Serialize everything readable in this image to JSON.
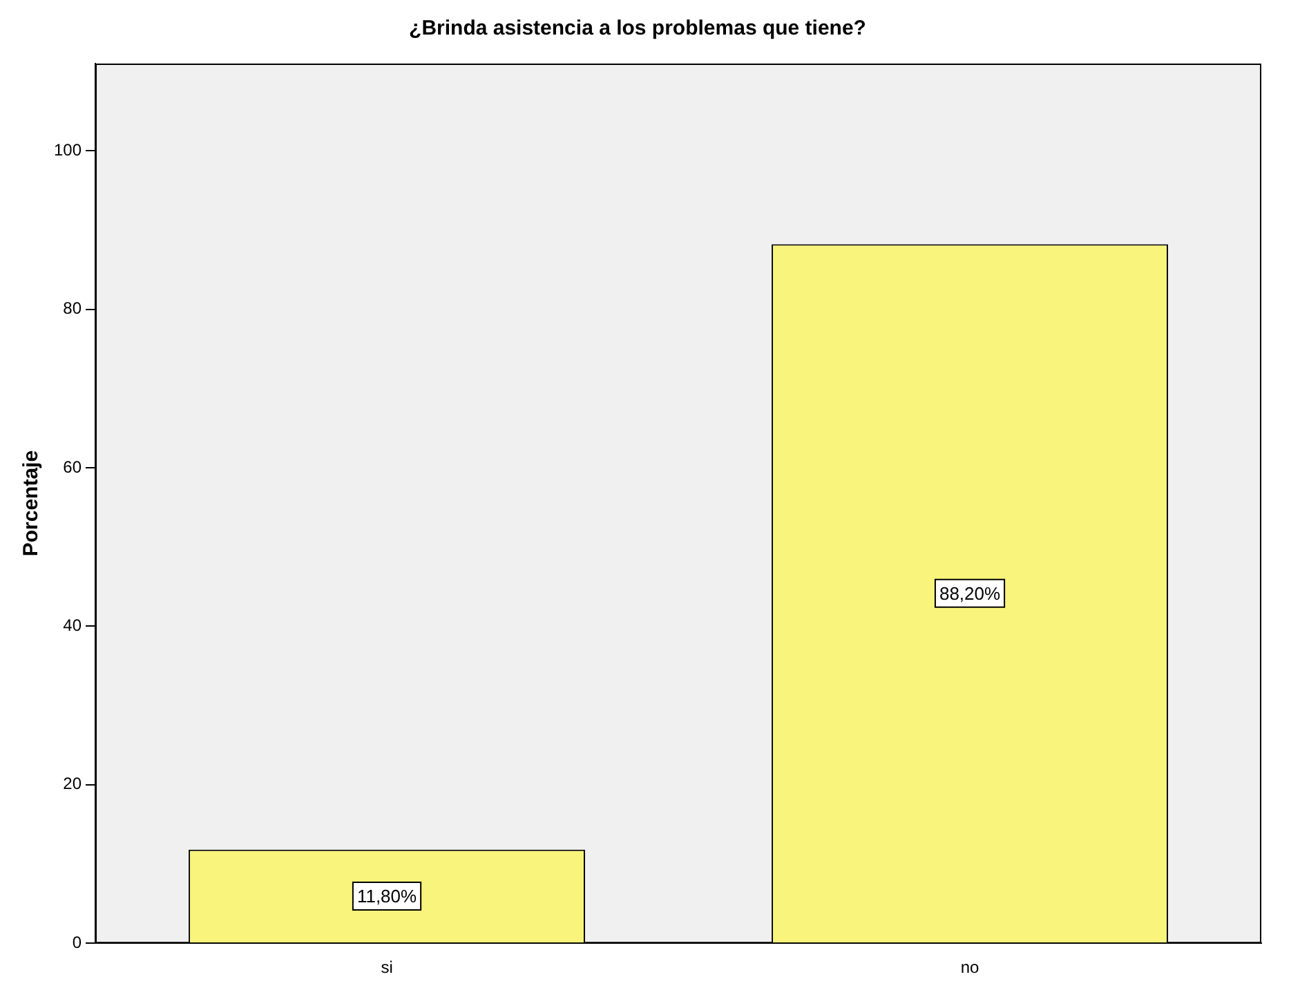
{
  "chart_data": {
    "type": "bar",
    "title": "¿Brinda asistencia a los problemas que tiene?",
    "ylabel": "Porcentaje",
    "categories": [
      "si",
      "no"
    ],
    "values": [
      11.8,
      88.2
    ],
    "color": "#f8f47c",
    "value_labels": [
      "11,80%",
      "88,20%"
    ],
    "ylim": [
      0,
      111
    ],
    "yticks": [
      0,
      20,
      40,
      60,
      80,
      100
    ],
    "grid": false,
    "legend": false
  }
}
